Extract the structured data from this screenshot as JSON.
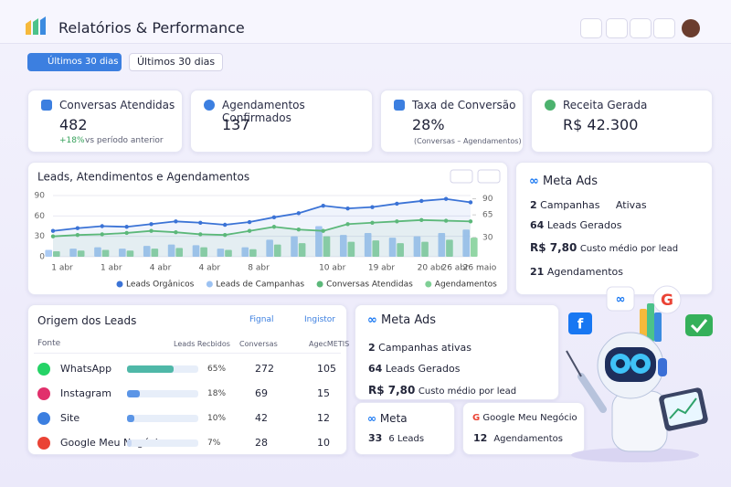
{
  "header": {
    "title": "Relatórios & Performance"
  },
  "filters": {
    "button": "Últimos 30 dias",
    "dropdown": "Últimos 30 dias"
  },
  "kpis": [
    {
      "label": "Conversas Atendidas",
      "value": "482",
      "delta": "+18%",
      "delta_note": "vs período anterior"
    },
    {
      "label": "Agendamentos Confirmados",
      "value": "137"
    },
    {
      "label": "Taxa de Conversão",
      "value": "28%",
      "note": "(Conversas – Agendamentos)"
    },
    {
      "label": "Receita Gerada",
      "value": "R$ 42.300"
    }
  ],
  "leads_chart": {
    "chart_data": {
      "type": "combo",
      "title": "Leads, Atendimentos e Agendamentos",
      "categories": [
        "1 abr",
        null,
        "1 abr",
        null,
        "4 abr",
        null,
        "4 abr",
        null,
        "8 abr",
        null,
        null,
        "10 abr",
        null,
        "19 abr",
        null,
        "20 abr",
        "26 abr",
        "26 maio"
      ],
      "series": [
        {
          "name": "Leads Orgânicos",
          "color": "#3b73d6",
          "kind": "line",
          "values": [
            38,
            42,
            45,
            44,
            48,
            52,
            50,
            47,
            51,
            58,
            64,
            75,
            71,
            73,
            78,
            82,
            85,
            80
          ]
        },
        {
          "name": "Leads de Campanhas",
          "color": "#9cc2f2",
          "kind": "bar",
          "values": [
            10,
            12,
            14,
            12,
            16,
            18,
            17,
            12,
            14,
            25,
            30,
            45,
            32,
            35,
            28,
            30,
            35,
            40
          ]
        },
        {
          "name": "Conversas Atendidas",
          "color": "#5cb87a",
          "kind": "line",
          "values": [
            30,
            32,
            33,
            35,
            38,
            36,
            33,
            32,
            38,
            44,
            40,
            38,
            48,
            50,
            52,
            54,
            53,
            52
          ]
        },
        {
          "name": "Agendamentos",
          "color": "#7fcf95",
          "kind": "bar",
          "values": [
            8,
            9,
            10,
            9,
            12,
            13,
            14,
            10,
            11,
            18,
            20,
            30,
            22,
            24,
            20,
            22,
            25,
            28
          ]
        }
      ],
      "ylim": [
        0,
        90
      ],
      "yticks": [
        0,
        30,
        60,
        90
      ],
      "y2lim": [
        0,
        95
      ],
      "y2ticks": [
        30,
        65,
        90
      ],
      "grid": true
    }
  },
  "meta_ads": {
    "title": "Meta Ads",
    "rows": [
      {
        "value": "2",
        "label": "Campanhas",
        "extra": "Ativas"
      },
      {
        "value": "64",
        "label": "Leads Gerados"
      },
      {
        "value": "R$ 7,80",
        "label": "Custo médio por lead"
      },
      {
        "value": "21",
        "label": "Agendamentos"
      }
    ]
  },
  "lead_origin": {
    "title": "Origem dos Leads",
    "tags": [
      "Fignal",
      "Ingistor"
    ],
    "columns": [
      "Fonte",
      "Leads Recbidos",
      "Conversas",
      "AgecMETIS"
    ],
    "rows": [
      {
        "source": "WhatsApp",
        "share": {
          "value": 65,
          "label": "65%"
        },
        "conversas": "272",
        "agendamentos": "105"
      },
      {
        "source": "Instagram",
        "share": {
          "value": 18,
          "label": "18%"
        },
        "conversas": "69",
        "agendamentos": "15"
      },
      {
        "source": "Site",
        "share": {
          "value": 10,
          "label": "10%"
        },
        "conversas": "42",
        "agendamentos": "12"
      },
      {
        "source": "Google Meu Negócio",
        "share": {
          "value": 7,
          "label": "7%"
        },
        "conversas": "28",
        "agendamentos": "10"
      }
    ]
  },
  "meta_ads_2": {
    "title": "Meta Ads",
    "rows": [
      {
        "value": "2",
        "label": "Campanhas ativas"
      },
      {
        "value": "64",
        "label": "Leads Gerados"
      },
      {
        "value": "R$ 7,80",
        "label": "Custo médio por lead"
      }
    ]
  },
  "mini_meta": {
    "title": "Meta",
    "value": "33",
    "label": "6 Leads"
  },
  "mini_google": {
    "title": "Google Meu Negócio",
    "value": "12",
    "label": "Agendamentos"
  }
}
